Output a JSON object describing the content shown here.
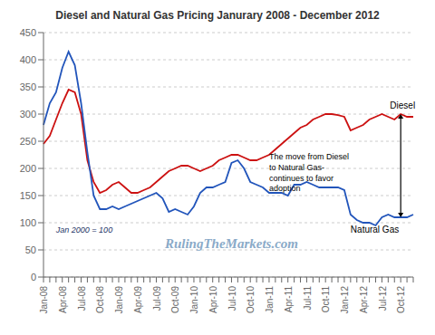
{
  "chart_data": {
    "type": "line",
    "title": "Diesel and Natural Gas Pricing  Janurary 2008 - December 2012",
    "categories": [
      "Jan-08",
      null,
      null,
      "Apr-08",
      null,
      null,
      "Jul-08",
      null,
      null,
      "Oct-08",
      null,
      null,
      "Jan-09",
      null,
      null,
      "Apr-09",
      null,
      null,
      "Jul-09",
      null,
      null,
      "Oct-09",
      null,
      null,
      "Jan-10",
      null,
      null,
      "Apr-10",
      null,
      null,
      "Jul-10",
      null,
      null,
      "Oct-10",
      null,
      null,
      "Jan-11",
      null,
      null,
      "Apr-11",
      null,
      null,
      "Jul-11",
      null,
      null,
      "Oct-11",
      null,
      null,
      "Jan-12",
      null,
      null,
      "Apr-12",
      null,
      null,
      "Jul-12",
      null,
      null,
      "Oct-12",
      null,
      null
    ],
    "series": [
      {
        "name": "Diesel",
        "color": "#cc1111",
        "values": [
          245,
          260,
          290,
          320,
          345,
          340,
          300,
          215,
          175,
          155,
          160,
          170,
          175,
          165,
          155,
          155,
          160,
          165,
          175,
          185,
          195,
          200,
          205,
          205,
          200,
          195,
          200,
          205,
          215,
          220,
          225,
          225,
          220,
          215,
          215,
          220,
          225,
          235,
          245,
          255,
          265,
          275,
          280,
          290,
          295,
          300,
          300,
          298,
          295,
          270,
          275,
          280,
          290,
          295,
          300,
          295,
          290,
          300,
          295,
          295
        ]
      },
      {
        "name": "Natural Gas",
        "color": "#2255bb",
        "values": [
          280,
          320,
          340,
          385,
          415,
          390,
          320,
          230,
          150,
          125,
          125,
          130,
          125,
          130,
          135,
          140,
          145,
          150,
          155,
          145,
          120,
          125,
          120,
          115,
          130,
          155,
          165,
          165,
          170,
          175,
          210,
          215,
          200,
          175,
          170,
          165,
          155,
          155,
          155,
          150,
          170,
          170,
          175,
          170,
          165,
          165,
          165,
          165,
          160,
          115,
          105,
          100,
          100,
          95,
          110,
          115,
          110,
          110,
          110,
          115
        ]
      }
    ],
    "annotations": [
      "RulingTheMarkets.com",
      "Jan 2000 = 100",
      "The move from Diesel\nto Natural Gas-\ncontinues  to favor\nadoption"
    ],
    "ylim": [
      0,
      450
    ],
    "yticks": [
      0,
      50,
      100,
      150,
      200,
      250,
      300,
      350,
      400,
      450
    ],
    "grid": true
  }
}
